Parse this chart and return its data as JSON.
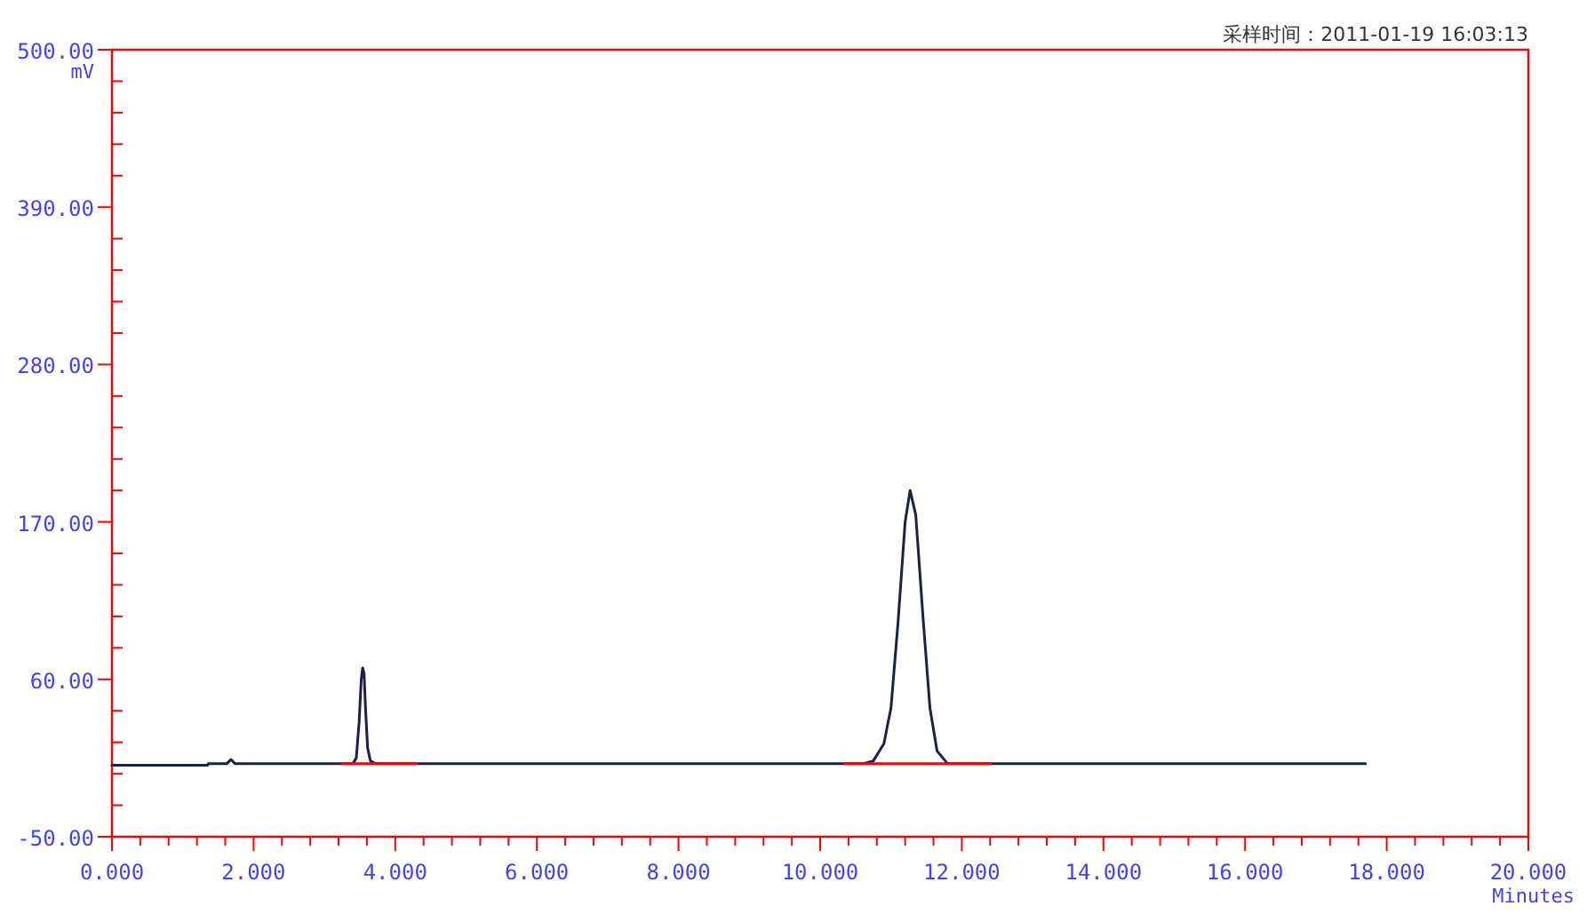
{
  "chart_data": {
    "type": "line",
    "xlabel": "Minutes",
    "ylabel": "mV",
    "annotations": [
      "采样时间：2011-01-19 16:03:13"
    ],
    "xlim": [
      0,
      20
    ],
    "ylim": [
      -50,
      500
    ],
    "xticks": [
      {
        "value": 0,
        "label": "0.000"
      },
      {
        "value": 2,
        "label": "2.000"
      },
      {
        "value": 4,
        "label": "4.000"
      },
      {
        "value": 6,
        "label": "6.000"
      },
      {
        "value": 8,
        "label": "8.000"
      },
      {
        "value": 10,
        "label": "10.000"
      },
      {
        "value": 12,
        "label": "12.000"
      },
      {
        "value": 14,
        "label": "14.000"
      },
      {
        "value": 16,
        "label": "16.000"
      },
      {
        "value": 18,
        "label": "18.000"
      },
      {
        "value": 20,
        "label": "20.000"
      }
    ],
    "yticks": [
      {
        "value": -50,
        "label": "-50.00"
      },
      {
        "value": 60,
        "label": "60.00"
      },
      {
        "value": 170,
        "label": "170.00"
      },
      {
        "value": 280,
        "label": "280.00"
      },
      {
        "value": 390,
        "label": "390.00"
      },
      {
        "value": 500,
        "label": "500.00"
      }
    ],
    "series": [
      {
        "color": "#1a1f4e",
        "x": [
          0,
          1.35,
          1.36,
          1.62,
          1.68,
          1.74,
          2.0,
          3.4,
          3.45,
          3.49,
          3.52,
          3.54,
          3.56,
          3.58,
          3.61,
          3.65,
          3.72,
          10.6,
          10.75,
          10.9,
          11.0,
          11.1,
          11.2,
          11.27,
          11.35,
          11.45,
          11.55,
          11.65,
          11.8,
          17.7
        ],
        "values": [
          0,
          0,
          1,
          1,
          4,
          1,
          1,
          1,
          5,
          30,
          60,
          68,
          64,
          40,
          12,
          3,
          1,
          1,
          3,
          15,
          40,
          100,
          170,
          192,
          175,
          105,
          40,
          10,
          1,
          1
        ]
      },
      {
        "color": "#ff0000",
        "x": [
          3.25,
          4.3
        ],
        "values": [
          1,
          1
        ]
      },
      {
        "color": "#ff0000",
        "x": [
          10.35,
          12.4
        ],
        "values": [
          1,
          1
        ]
      }
    ]
  }
}
